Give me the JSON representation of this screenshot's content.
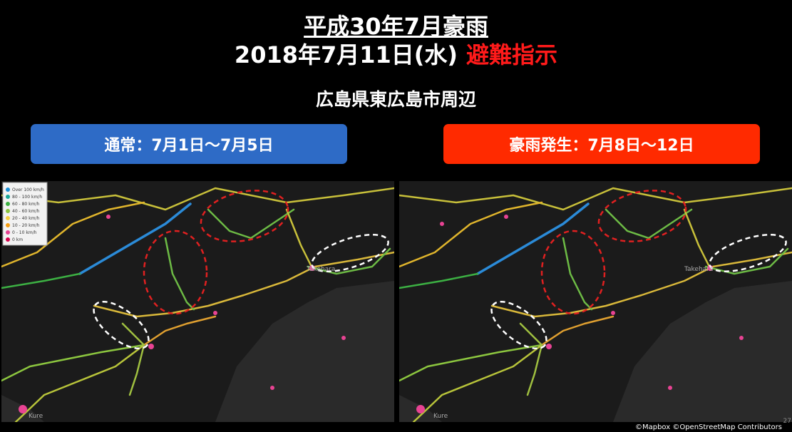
{
  "header": {
    "title": "平成30年7月豪雨",
    "date": "2018年7月11日(水)",
    "alert": "避難指示",
    "subtitle": "広島県東広島市周辺"
  },
  "panels": [
    {
      "label": "通常：7月1日～7月5日",
      "color": "#2e6bc6"
    },
    {
      "label": "豪雨発生：7月8日～12日",
      "color": "#ff2a00"
    }
  ],
  "legend": [
    {
      "name": "Over 100 km/h",
      "color": "#1a8fd6"
    },
    {
      "name": "80 - 100 km/h",
      "color": "#19a89a"
    },
    {
      "name": "60 - 80 km/h",
      "color": "#3cb043"
    },
    {
      "name": "40 - 60 km/h",
      "color": "#8cc63f"
    },
    {
      "name": "20 - 40 km/h",
      "color": "#f4d03f"
    },
    {
      "name": "10 - 20 km/h",
      "color": "#f39c12"
    },
    {
      "name": "0 - 10 km/h",
      "color": "#e84393"
    },
    {
      "name": "0 km",
      "color": "#d6004c"
    }
  ],
  "map_labels": [
    "Takehara",
    "Kure"
  ],
  "attribution": "©Mapbox ©OpenStreetMap Contributors",
  "page_number": "27"
}
